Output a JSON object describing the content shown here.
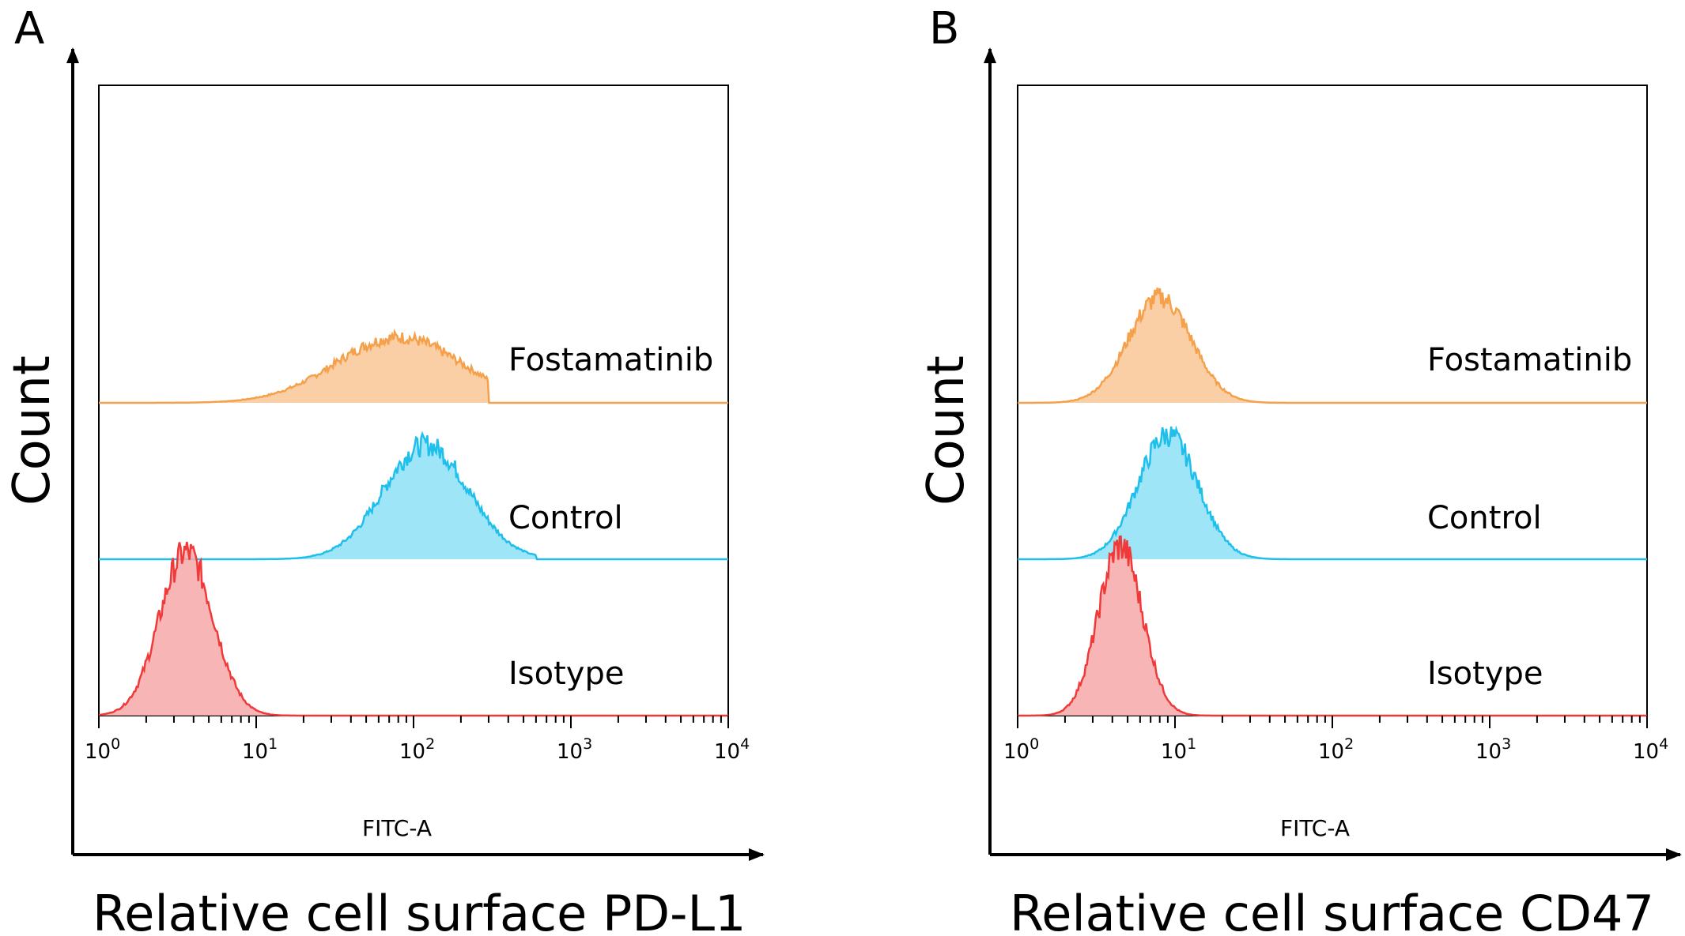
{
  "chart_data": [
    {
      "type": "histogram",
      "panel": "A",
      "ylabel": "Count",
      "xlabel": "Relative cell surface PD-L1",
      "axis_label": "FITC-A",
      "x_scale": "log",
      "xlim": [
        1,
        10000
      ],
      "x_ticks": [
        {
          "base": "10",
          "exp": "0",
          "value": 1
        },
        {
          "base": "10",
          "exp": "1",
          "value": 10
        },
        {
          "base": "10",
          "exp": "2",
          "value": 100
        },
        {
          "base": "10",
          "exp": "3",
          "value": 1000
        },
        {
          "base": "10",
          "exp": "4",
          "value": 10000
        }
      ],
      "series": [
        {
          "name": "Fostamatinib",
          "color": "#f5a04a",
          "fill": "#f9c795",
          "offset": 2,
          "peak": 80,
          "sigma": 0.4,
          "height": 0.72,
          "end": 300
        },
        {
          "name": "Control",
          "color": "#1fbfeb",
          "fill": "#8ee0f7",
          "offset": 1,
          "peak": 120,
          "sigma": 0.27,
          "height": 1.26,
          "end": 600
        },
        {
          "name": "Isotype",
          "color": "#f03a3a",
          "fill": "#f7a8a8",
          "offset": 0,
          "peak": 3.6,
          "sigma": 0.17,
          "height": 1.8,
          "end": 40
        }
      ]
    },
    {
      "type": "histogram",
      "panel": "B",
      "ylabel": "Count",
      "xlabel": "Relative cell surface CD47",
      "axis_label": "FITC-A",
      "x_scale": "log",
      "xlim": [
        1,
        10000
      ],
      "x_ticks": [
        {
          "base": "10",
          "exp": "0",
          "value": 1
        },
        {
          "base": "10",
          "exp": "1",
          "value": 10
        },
        {
          "base": "10",
          "exp": "2",
          "value": 100
        },
        {
          "base": "10",
          "exp": "3",
          "value": 1000
        },
        {
          "base": "10",
          "exp": "4",
          "value": 10000
        }
      ],
      "series": [
        {
          "name": "Fostamatinib",
          "color": "#f5a04a",
          "fill": "#f9c795",
          "offset": 2,
          "peak": 8,
          "sigma": 0.2,
          "height": 1.16,
          "end": 200
        },
        {
          "name": "Control",
          "color": "#1fbfeb",
          "fill": "#8ee0f7",
          "offset": 1,
          "peak": 9,
          "sigma": 0.19,
          "height": 1.37,
          "end": 120
        },
        {
          "name": "Isotype",
          "color": "#f03a3a",
          "fill": "#f7a8a8",
          "offset": 0,
          "peak": 4.5,
          "sigma": 0.14,
          "height": 1.87,
          "end": 30
        }
      ]
    }
  ]
}
